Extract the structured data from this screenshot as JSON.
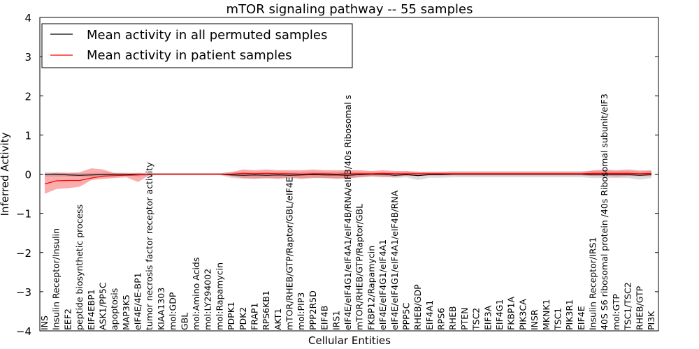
{
  "chart_data": {
    "type": "line",
    "title": "mTOR signaling pathway -- 55 samples",
    "xlabel": "Cellular Entities",
    "ylabel": "Inferred Activity",
    "ylim": [
      -4,
      4
    ],
    "yticks": [
      -4,
      -3,
      -2,
      -1,
      0,
      1,
      2,
      3,
      4
    ],
    "ytick_labels": [
      "−4",
      "−3",
      "−2",
      "−1",
      "0",
      "1",
      "2",
      "3",
      "4"
    ],
    "grid": false,
    "legend_position": "top-left",
    "categories": [
      "INS",
      "Insulin Receptor/Insulin",
      "EEF2",
      "peptide biosynthetic process",
      "EIF4EBP1",
      "ASK1/PP5C",
      "apoptosis",
      "MAP3K5",
      "eIF4E/4E-BP1",
      "tumor necrosis factor receptor activity",
      "KIAA1303",
      "mol:GDP",
      "GBL",
      "mol:Amino Acids",
      "mol:LY294002",
      "mol:Rapamycin",
      "PDPK1",
      "PDK2",
      "FRAP1",
      "RPS6KB1",
      "AKT1",
      "mTOR/RHEB/GTP/Raptor/GBL/eIF4E",
      "mol:PIP3",
      "PPP2R5D",
      "EIF4B",
      "IRS1",
      "eIF4E/eIF4G1/eIF4A1/eIF4B/RNA/eIF3/40s Ribosomal s",
      "mTOR/RHEB/GTP/Raptor/GBL",
      "FKBP12/Rapamycin",
      "eIF4E/eIF4G1/eIF4A1",
      "eIF4E/eIF4G1/eIF4A1/eIF4B/RNA",
      "PPP5C",
      "RHEB/GDP",
      "EIF4A1",
      "RPS6",
      "RHEB",
      "PTEN",
      "TSC2",
      "EIF3A",
      "EIF4G1",
      "FKBP1A",
      "PIK3CA",
      "INSR",
      "MKNK1",
      "TSC1",
      "PIK3R1",
      "EIF4E",
      "Insulin Receptor/IRS1",
      "40S S6 ribosomal protein /40s Ribosomal subunit/eIF3",
      "mol:GTP",
      "TSC1/TSC2",
      "RHEB/GTP",
      "PI3K"
    ],
    "series": [
      {
        "name": "Mean activity in all permuted samples",
        "color": "#000000",
        "values": [
          0,
          0,
          -0.02,
          -0.03,
          -0.02,
          -0.01,
          0,
          0,
          -0.01,
          0,
          0,
          0,
          0,
          0,
          0,
          0,
          -0.02,
          -0.03,
          -0.02,
          -0.03,
          -0.02,
          -0.03,
          -0.02,
          -0.01,
          -0.02,
          -0.02,
          -0.03,
          -0.01,
          0,
          0,
          -0.03,
          -0.01,
          -0.04,
          -0.01,
          -0.01,
          0,
          0,
          0,
          0,
          0,
          0,
          0,
          0,
          0,
          0,
          0,
          0,
          -0.01,
          -0.01,
          -0.01,
          -0.01,
          -0.03,
          -0.01
        ],
        "lower": [
          -0.06,
          -0.06,
          -0.06,
          -0.07,
          -0.08,
          -0.06,
          -0.05,
          -0.04,
          -0.06,
          -0.03,
          -0.02,
          -0.02,
          -0.02,
          -0.02,
          -0.02,
          -0.02,
          -0.1,
          -0.12,
          -0.1,
          -0.11,
          -0.1,
          -0.12,
          -0.1,
          -0.09,
          -0.1,
          -0.1,
          -0.12,
          -0.08,
          -0.05,
          -0.05,
          -0.1,
          -0.08,
          -0.15,
          -0.09,
          -0.09,
          -0.08,
          -0.08,
          -0.08,
          -0.08,
          -0.08,
          -0.08,
          -0.08,
          -0.08,
          -0.08,
          -0.08,
          -0.08,
          -0.08,
          -0.1,
          -0.1,
          -0.1,
          -0.1,
          -0.14,
          -0.1
        ],
        "upper": [
          0.05,
          0.05,
          0.04,
          0.02,
          0.03,
          0.04,
          0.04,
          0.04,
          0.03,
          0.02,
          0.02,
          0.02,
          0.02,
          0.02,
          0.02,
          0.02,
          0.06,
          0.06,
          0.06,
          0.05,
          0.06,
          0.05,
          0.06,
          0.07,
          0.06,
          0.06,
          0.06,
          0.06,
          0.05,
          0.05,
          0.05,
          0.06,
          0.06,
          0.07,
          0.07,
          0.08,
          0.08,
          0.08,
          0.08,
          0.08,
          0.08,
          0.08,
          0.08,
          0.08,
          0.08,
          0.08,
          0.08,
          0.08,
          0.08,
          0.08,
          0.08,
          0.07,
          0.08
        ]
      },
      {
        "name": "Mean activity in patient samples",
        "color": "#ff0000",
        "values": [
          -0.25,
          -0.17,
          -0.16,
          -0.16,
          -0.1,
          -0.05,
          -0.04,
          -0.03,
          -0.02,
          0,
          0,
          0,
          0,
          0,
          0,
          0,
          0,
          0.02,
          0.01,
          0.02,
          0.01,
          0.01,
          0,
          0.01,
          0.01,
          0,
          0.01,
          0.01,
          0.01,
          0.02,
          0.01,
          0.01,
          0.01,
          0.01,
          0.01,
          0.01,
          0.01,
          0.01,
          0.01,
          0.01,
          0.01,
          0.01,
          0.01,
          0.01,
          0.01,
          0.01,
          0.01,
          0.02,
          0.02,
          0.02,
          0.02,
          0.01,
          0.02
        ],
        "lower": [
          -0.5,
          -0.38,
          -0.36,
          -0.32,
          -0.15,
          -0.12,
          -0.1,
          -0.08,
          -0.2,
          -0.02,
          -0.02,
          -0.02,
          -0.02,
          -0.02,
          -0.02,
          -0.02,
          -0.05,
          -0.1,
          -0.12,
          -0.1,
          -0.12,
          -0.08,
          -0.12,
          -0.1,
          -0.1,
          -0.12,
          -0.1,
          -0.08,
          -0.06,
          -0.08,
          -0.06,
          -0.04,
          -0.04,
          -0.03,
          -0.03,
          -0.03,
          -0.03,
          -0.03,
          -0.03,
          -0.03,
          -0.03,
          -0.03,
          -0.03,
          -0.03,
          -0.03,
          -0.03,
          -0.03,
          -0.05,
          -0.05,
          -0.06,
          -0.05,
          -0.05,
          -0.05
        ],
        "upper": [
          0,
          0.03,
          0.03,
          0.05,
          0.15,
          0.12,
          0.02,
          0.01,
          0.03,
          0.02,
          0.02,
          0.02,
          0.02,
          0.02,
          0.02,
          0.02,
          0.05,
          0.12,
          0.1,
          0.12,
          0.1,
          0.1,
          0.1,
          0.12,
          0.1,
          0.1,
          0.1,
          0.1,
          0.08,
          0.1,
          0.08,
          0.08,
          0.06,
          0.05,
          0.05,
          0.05,
          0.05,
          0.05,
          0.05,
          0.05,
          0.05,
          0.05,
          0.05,
          0.05,
          0.05,
          0.05,
          0.05,
          0.1,
          0.12,
          0.1,
          0.12,
          0.09,
          0.1
        ]
      }
    ]
  }
}
